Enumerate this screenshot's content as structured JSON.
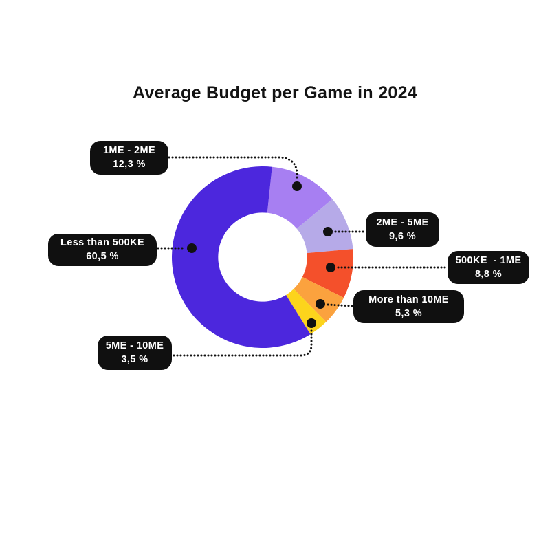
{
  "title": "Average Budget per Game in 2024",
  "chart_data": {
    "type": "pie",
    "subtype": "donut",
    "title": "Average Budget per Game in 2024",
    "start_angle_deg": 6,
    "inner_radius_ratio": 0.49,
    "legend": "callout-labels-with-dotted-leaders",
    "background": "#ffffff",
    "callout_bg": "#101010",
    "callout_text_color": "#ffffff",
    "segments": [
      {
        "label": "1ME - 2ME",
        "value": 12.3,
        "value_text": "12,3 %",
        "color": "#a77ff2"
      },
      {
        "label": "2ME - 5ME",
        "value": 9.6,
        "value_text": "9,6 %",
        "color": "#b6aae8"
      },
      {
        "label": "500KE  - 1ME",
        "value": 8.8,
        "value_text": "8,8 %",
        "color": "#f4502b"
      },
      {
        "label": "More than 10ME",
        "value": 5.3,
        "value_text": "5,3 %",
        "color": "#fba23e"
      },
      {
        "label": "5ME - 10ME",
        "value": 3.5,
        "value_text": "3,5 %",
        "color": "#fcd41c"
      },
      {
        "label": "Less than 500KE",
        "value": 60.5,
        "value_text": "60,5 %",
        "color": "#4c27dd"
      }
    ]
  }
}
